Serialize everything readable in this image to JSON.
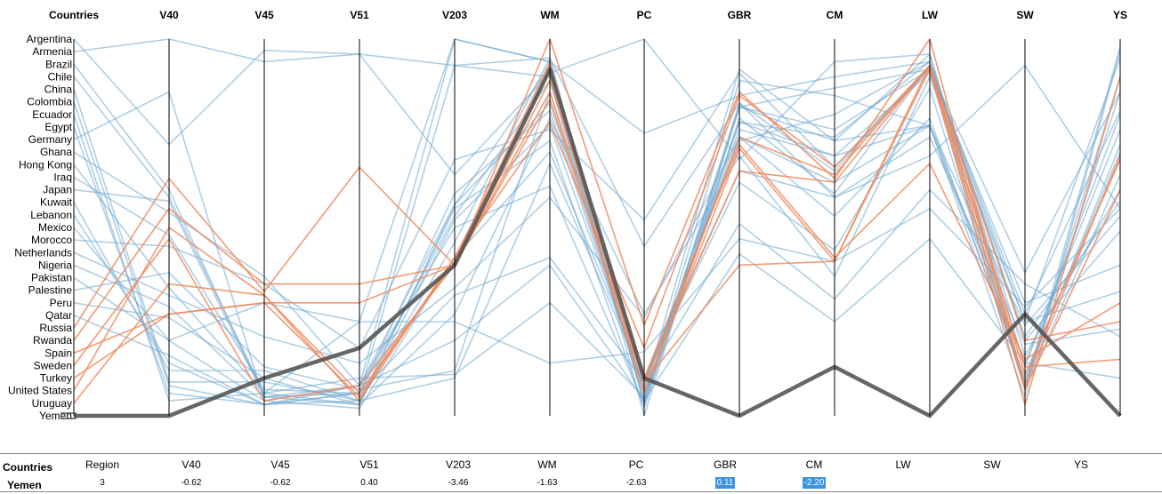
{
  "chart_data": {
    "type": "parallel-coordinates",
    "category_axis": {
      "title": "Countries",
      "categories": [
        "Argentina",
        "Armenia",
        "Brazil",
        "Chile",
        "China",
        "Colombia",
        "Ecuador",
        "Egypt",
        "Germany",
        "Ghana",
        "Hong Kong",
        "Iraq",
        "Japan",
        "Kuwait",
        "Lebanon",
        "Mexico",
        "Morocco",
        "Netherlands",
        "Nigeria",
        "Pakistan",
        "Palestine",
        "Peru",
        "Qatar",
        "Russia",
        "Rwanda",
        "Spain",
        "Sweden",
        "Turkey",
        "United States",
        "Uruguay",
        "Yemen"
      ]
    },
    "axes": [
      "V40",
      "V45",
      "V51",
      "V203",
      "WM",
      "PC",
      "GBR",
      "CM",
      "LW",
      "SW",
      "YS"
    ],
    "axis_range": [
      0,
      1
    ],
    "colors": {
      "default": "#6fa8d0",
      "highlight": "#f08a5d",
      "selected": "#555555"
    },
    "series": [
      {
        "country": "Argentina",
        "group": "default",
        "values": [
          0.72,
          0.97,
          0.96,
          0.93,
          0.95,
          0.45,
          0.83,
          0.58,
          0.69,
          0.93,
          0.55
        ]
      },
      {
        "country": "Armenia",
        "group": "default",
        "values": [
          1.0,
          0.94,
          0.96,
          0.64,
          0.91,
          1.0,
          0.68,
          0.94,
          0.96,
          0.08,
          0.86
        ]
      },
      {
        "country": "Brazil",
        "group": "default",
        "values": [
          0.6,
          0.05,
          0.08,
          1.0,
          0.94,
          0.0,
          0.82,
          0.87,
          0.92,
          0.38,
          0.86
        ]
      },
      {
        "country": "Chile",
        "group": "default",
        "values": [
          0.58,
          0.06,
          0.25,
          1.0,
          0.94,
          0.75,
          0.85,
          0.9,
          0.94,
          0.2,
          0.49
        ]
      },
      {
        "country": "China",
        "group": "default",
        "values": [
          0.09,
          0.09,
          0.04,
          0.1,
          0.67,
          0.09,
          0.73,
          0.8,
          0.94,
          0.21,
          0.57
        ]
      },
      {
        "country": "Colombia",
        "group": "default",
        "values": [
          0.08,
          0.03,
          0.04,
          0.46,
          0.95,
          0.04,
          0.83,
          0.65,
          0.93,
          0.27,
          0.81
        ]
      },
      {
        "country": "Ecuador",
        "group": "default",
        "values": [
          0.04,
          0.06,
          0.03,
          0.56,
          0.83,
          0.07,
          0.78,
          0.69,
          0.77,
          0.14,
          0.76
        ]
      },
      {
        "country": "Egypt",
        "group": "default",
        "values": [
          0.06,
          0.03,
          0.06,
          0.93,
          0.9,
          0.04,
          0.89,
          0.85,
          0.77,
          0.24,
          0.53
        ]
      },
      {
        "country": "Germany",
        "group": "default",
        "values": [
          0.86,
          0.04,
          0.08,
          0.56,
          0.93,
          0.03,
          0.82,
          0.73,
          0.96,
          0.13,
          0.8
        ]
      },
      {
        "country": "Ghana",
        "group": "default",
        "values": [
          0.54,
          0.37,
          0.08,
          0.5,
          0.61,
          0.03,
          0.78,
          0.74,
          0.94,
          0.16,
          0.6
        ]
      },
      {
        "country": "Hong Kong",
        "group": "default",
        "values": [
          0.34,
          0.06,
          0.1,
          0.11,
          0.3,
          0.05,
          0.76,
          0.69,
          0.91,
          0.07,
          0.98
        ]
      },
      {
        "country": "Iraq",
        "group": "default",
        "values": [
          0.48,
          0.07,
          0.06,
          0.59,
          0.81,
          0.07,
          0.92,
          0.73,
          0.77,
          0.05,
          0.97
        ]
      },
      {
        "country": "Japan",
        "group": "default",
        "values": [
          0.57,
          0.05,
          0.03,
          0.52,
          0.77,
          0.08,
          0.74,
          0.62,
          0.77,
          0.1,
          0.7
        ]
      },
      {
        "country": "Kuwait",
        "group": "default",
        "values": [
          0.12,
          0.12,
          0.04,
          0.55,
          0.73,
          0.02,
          0.79,
          0.59,
          0.93,
          0.25,
          0.95
        ]
      },
      {
        "country": "Lebanon",
        "group": "default",
        "values": [
          0.14,
          0.03,
          0.06,
          0.53,
          0.89,
          0.04,
          0.82,
          0.76,
          0.92,
          0.08,
          0.9
        ]
      },
      {
        "country": "Mexico",
        "group": "default",
        "values": [
          0.2,
          0.3,
          0.25,
          0.25,
          0.14,
          0.17,
          0.47,
          0.41,
          0.55,
          0.29,
          0.55
        ]
      },
      {
        "country": "Morocco",
        "group": "default",
        "values": [
          0.45,
          0.35,
          0.18,
          0.68,
          0.76,
          0.52,
          0.91,
          0.66,
          0.92,
          0.3,
          0.4
        ]
      },
      {
        "country": "Netherlands",
        "group": "default",
        "values": [
          0.32,
          0.21,
          0.14,
          0.34,
          0.58,
          0.26,
          0.74,
          0.53,
          0.79,
          0.09,
          0.72
        ]
      },
      {
        "country": "Nigeria",
        "group": "default",
        "values": [
          0.29,
          0.05,
          0.06,
          0.32,
          0.42,
          0.09,
          0.51,
          0.31,
          0.6,
          0.35,
          0.21
        ]
      },
      {
        "country": "Pakistan",
        "group": "default",
        "values": [
          0.2,
          0.04,
          0.02,
          0.42,
          0.7,
          0.1,
          0.62,
          0.44,
          0.87,
          0.07,
          0.64
        ]
      },
      {
        "country": "Palestine",
        "group": "default",
        "values": [
          0.38,
          0.13,
          0.07,
          0.12,
          0.86,
          0.1,
          0.65,
          0.58,
          0.74,
          0.19,
          0.23
        ]
      },
      {
        "country": "Peru",
        "group": "default",
        "values": [
          0.26,
          0.1,
          0.03,
          0.27,
          0.79,
          0.27,
          0.69,
          0.37,
          0.9,
          0.25,
          0.33
        ]
      },
      {
        "country": "Qatar",
        "group": "default",
        "values": [
          0.16,
          0.03,
          0.08,
          0.2,
          0.4,
          0.04,
          0.43,
          0.25,
          0.47,
          0.14,
          0.1
        ]
      },
      {
        "country": "Russia",
        "group": "highlight",
        "values": [
          0.63,
          0.33,
          0.66,
          0.4,
          1.0,
          0.24,
          0.86,
          0.63,
          1.0,
          0.08,
          0.69
        ]
      },
      {
        "country": "Rwanda",
        "group": "highlight",
        "values": [
          0.55,
          0.35,
          0.35,
          0.4,
          0.89,
          0.1,
          0.72,
          0.42,
          0.67,
          0.15,
          0.3
        ]
      },
      {
        "country": "Spain",
        "group": "highlight",
        "values": [
          0.27,
          0.3,
          0.3,
          0.4,
          0.86,
          0.06,
          0.71,
          0.41,
          0.93,
          0.2,
          0.25
        ]
      },
      {
        "country": "Sweden",
        "group": "highlight",
        "values": [
          0.47,
          0.04,
          0.08,
          0.4,
          0.84,
          0.09,
          0.4,
          0.41,
          0.92,
          0.03,
          0.9
        ]
      },
      {
        "country": "Turkey",
        "group": "highlight",
        "values": [
          0.27,
          0.3,
          0.05,
          0.42,
          0.92,
          0.09,
          0.65,
          0.62,
          0.93,
          0.13,
          0.15
        ]
      },
      {
        "country": "United States",
        "group": "highlight",
        "values": [
          0.5,
          0.32,
          0.04,
          0.42,
          0.78,
          0.18,
          0.85,
          0.66,
          0.93,
          0.07,
          0.6
        ]
      },
      {
        "country": "Uruguay",
        "group": "highlight",
        "values": [
          0.35,
          0.32,
          0.06,
          0.41,
          0.94,
          0.06,
          0.74,
          0.64,
          0.93,
          0.11,
          0.68
        ]
      },
      {
        "country": "Yemen",
        "group": "selected",
        "values": [
          0.0,
          0.1,
          0.18,
          0.4,
          0.92,
          0.1,
          0.0,
          0.13,
          0.0,
          0.27,
          0.0
        ]
      }
    ]
  },
  "summary": {
    "headers": {
      "countries": "Countries",
      "region": "Region",
      "V40": "V40",
      "V45": "V45",
      "V51": "V51",
      "V203": "V203",
      "WM": "WM",
      "PC": "PC",
      "GBR": "GBR",
      "CM": "CM",
      "LW": "LW",
      "SW": "SW",
      "YS": "YS"
    },
    "row": {
      "country": "Yemen",
      "region": "3",
      "V40": "-0.62",
      "V45": "-0.62",
      "V51": "0.40",
      "V203": "-3.46",
      "WM": "-1.63",
      "PC": "-2.63",
      "GBR": "0.11",
      "CM": "-2.20"
    }
  }
}
